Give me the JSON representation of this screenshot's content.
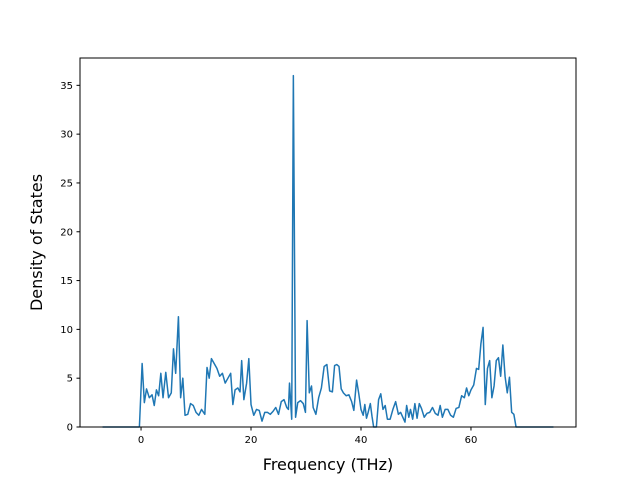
{
  "chart_data": {
    "type": "line",
    "x_label": "Frequency (THz)",
    "y_label": "Density of States",
    "xlim": [
      -11.1,
      79.1
    ],
    "ylim": [
      0,
      37.8
    ],
    "xticks": [
      0,
      20,
      40,
      60
    ],
    "yticks": [
      0,
      5,
      10,
      15,
      20,
      25,
      30,
      35
    ],
    "grid": false,
    "x": [
      -7,
      -0.3,
      0.2,
      0.6,
      1,
      1.5,
      2,
      2.4,
      2.8,
      3.2,
      3.6,
      4,
      4.5,
      5,
      5.5,
      5.9,
      6.3,
      6.8,
      7.2,
      7.6,
      8,
      8.5,
      9,
      9.5,
      10,
      10.5,
      11,
      11.6,
      12,
      12.4,
      12.8,
      13.3,
      13.8,
      14.3,
      14.8,
      15.3,
      15.8,
      16.3,
      16.7,
      17.1,
      17.6,
      18,
      18.3,
      18.7,
      19.2,
      19.6,
      20,
      20.5,
      21,
      21.5,
      22,
      22.5,
      23,
      23.5,
      24,
      24.5,
      25,
      25.5,
      26,
      26.5,
      26.8,
      27,
      27.4,
      27.7,
      28.1,
      28.5,
      29,
      29.5,
      29.9,
      30.2,
      30.6,
      31,
      31.3,
      31.8,
      32.3,
      32.8,
      33.3,
      33.8,
      34.3,
      34.8,
      35.2,
      35.6,
      36,
      36.4,
      36.8,
      37.3,
      37.8,
      38.3,
      38.7,
      39.2,
      39.6,
      40,
      40.4,
      40.7,
      41,
      41.3,
      41.7,
      42,
      42.3,
      42.8,
      43.2,
      43.6,
      44,
      44.4,
      44.8,
      45.3,
      45.8,
      46.3,
      46.8,
      47.2,
      47.6,
      48,
      48.3,
      48.7,
      49,
      49.4,
      49.8,
      50.2,
      50.6,
      51,
      51.5,
      52,
      52.5,
      53,
      53.5,
      54,
      54.4,
      54.8,
      55.3,
      55.8,
      56.3,
      56.8,
      57.3,
      57.8,
      58.3,
      58.8,
      59.2,
      59.6,
      60,
      60.5,
      61,
      61.4,
      61.8,
      62.2,
      62.6,
      63,
      63.4,
      63.8,
      64.2,
      64.6,
      65,
      65.4,
      65.8,
      66.2,
      66.6,
      67,
      67.4,
      67.8,
      68.2,
      75
    ],
    "series": [
      {
        "color": "#1f77b4",
        "values": [
          0,
          0,
          6.5,
          2.5,
          3.9,
          3.0,
          3.3,
          2.2,
          3.8,
          3.2,
          5.5,
          3.0,
          5.6,
          3.0,
          3.5,
          8.0,
          5.5,
          11.3,
          3.0,
          5.0,
          1.2,
          1.3,
          2.4,
          2.2,
          1.5,
          1.2,
          1.8,
          1.3,
          6.1,
          5.0,
          7.0,
          6.5,
          6.0,
          5.2,
          5.5,
          4.5,
          5.0,
          5.5,
          2.3,
          3.8,
          4.0,
          3.6,
          6.8,
          2.8,
          4.5,
          7.0,
          2.3,
          1.2,
          1.8,
          1.7,
          0.6,
          1.5,
          1.5,
          1.3,
          1.6,
          2.0,
          1.3,
          2.6,
          2.8,
          2.0,
          1.8,
          4.5,
          0.8,
          36.0,
          1.0,
          2.5,
          2.7,
          2.4,
          1.5,
          10.9,
          3.5,
          4.2,
          2.0,
          1.3,
          3.0,
          4.0,
          6.2,
          6.4,
          3.7,
          3.6,
          6.3,
          6.4,
          6.2,
          3.9,
          3.5,
          3.2,
          3.3,
          2.6,
          1.7,
          4.8,
          3.4,
          1.8,
          1.2,
          2.3,
          0.9,
          1.5,
          2.4,
          1.1,
          0,
          0,
          2.8,
          3.4,
          1.8,
          2.2,
          0.8,
          0.8,
          1.8,
          2.6,
          1.3,
          1.5,
          1.0,
          0.5,
          2.2,
          1.0,
          1.8,
          0.8,
          2.4,
          0.9,
          2.4,
          1.9,
          1.0,
          1.4,
          1.5,
          2.0,
          1.4,
          1.2,
          2.2,
          1.0,
          1.8,
          1.8,
          1.2,
          1.0,
          1.9,
          2.0,
          3.2,
          3.0,
          4.0,
          3.2,
          3.8,
          4.3,
          6.0,
          5.9,
          8.5,
          10.2,
          2.3,
          6.0,
          6.8,
          3.0,
          4.2,
          6.8,
          7.1,
          5.2,
          8.4,
          5.2,
          3.5,
          5.1,
          1.5,
          1.3,
          0,
          0
        ]
      }
    ]
  }
}
